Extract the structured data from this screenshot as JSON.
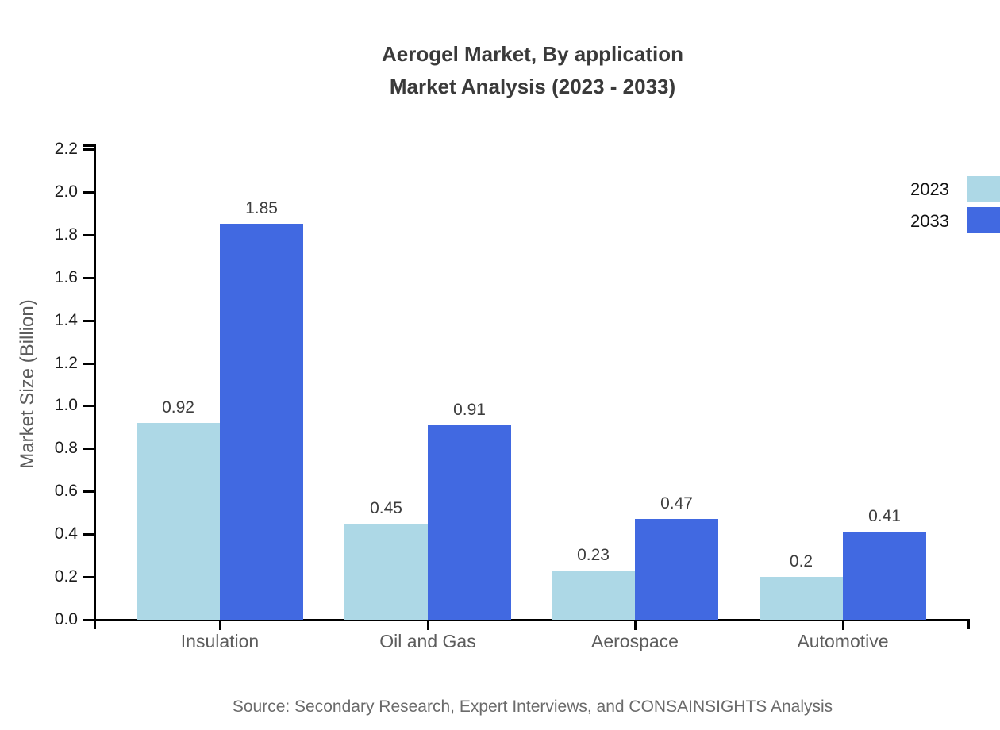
{
  "title": {
    "line1": "Aerogel Market, By application",
    "line2": "Market Analysis (2023 - 2033)"
  },
  "source": "Source: Secondary Research, Expert Interviews, and CONSAINSIGHTS Analysis",
  "chart_data": {
    "type": "bar",
    "title": "Aerogel Market, By application Market Analysis (2023 - 2033)",
    "categories": [
      "Insulation",
      "Oil and Gas",
      "Aerospace",
      "Automotive"
    ],
    "series": [
      {
        "name": "2023",
        "color": "#ADD8E6",
        "values": [
          0.92,
          0.45,
          0.23,
          0.2
        ]
      },
      {
        "name": "2033",
        "color": "#4169E1",
        "values": [
          1.85,
          0.91,
          0.47,
          0.41
        ]
      }
    ],
    "ylabel": "Market Size (Billion)",
    "xlabel": "",
    "ylim": [
      0,
      2.2
    ],
    "ytick_step": 0.2,
    "grid": false,
    "legend_position": "upper-right",
    "bar_value_labels": true,
    "axis_color": "#000000"
  }
}
